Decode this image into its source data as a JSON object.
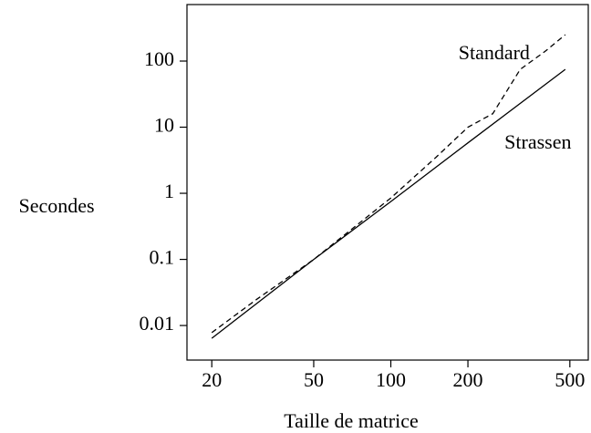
{
  "chart_data": {
    "type": "line",
    "x_label": "Taille de matrice",
    "y_label": "Secondes",
    "log_x": true,
    "log_y": true,
    "xlim": [
      16,
      590
    ],
    "ylim": [
      0.003,
      716
    ],
    "xticks": [
      20,
      50,
      100,
      200,
      500
    ],
    "yticks": [
      0.01,
      0.1,
      1,
      10,
      100
    ],
    "series": [
      {
        "name": "Standard",
        "color": "#000000",
        "dash": true,
        "x": [
          20,
          30,
          50,
          100,
          150,
          200,
          250,
          320,
          400,
          480
        ],
        "values": [
          0.0078,
          0.025,
          0.1,
          0.85,
          3.5,
          10,
          16,
          75,
          140,
          250
        ]
      },
      {
        "name": "Strassen",
        "color": "#000000",
        "dash": false,
        "x": [
          20,
          50,
          100,
          200,
          480
        ],
        "values": [
          0.0064,
          0.1,
          0.75,
          5.8,
          75
        ]
      }
    ]
  }
}
